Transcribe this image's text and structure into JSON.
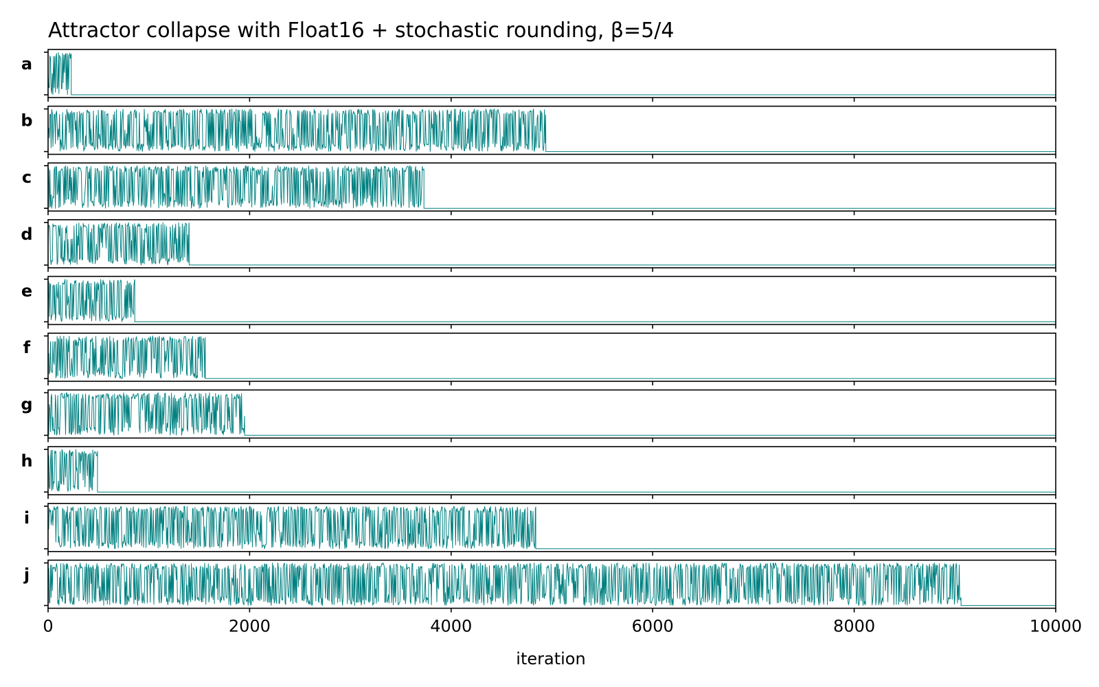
{
  "chart_data": {
    "type": "line",
    "title": "Attractor collapse with Float16 + stochastic rounding, β=5/4",
    "xlabel": "iteration",
    "xlim": [
      0,
      10000
    ],
    "xticks": [
      0,
      2000,
      4000,
      6000,
      8000,
      10000
    ],
    "xtick_labels": [
      "0",
      "2000",
      "4000",
      "6000",
      "8000",
      "10000"
    ],
    "line_color": "#008080",
    "grid": false,
    "legend": "none",
    "panel_y_range": [
      0,
      1
    ],
    "panels": [
      {
        "label": "a",
        "collapse_iteration": 230
      },
      {
        "label": "b",
        "collapse_iteration": 4940
      },
      {
        "label": "c",
        "collapse_iteration": 3730
      },
      {
        "label": "d",
        "collapse_iteration": 1400
      },
      {
        "label": "e",
        "collapse_iteration": 860
      },
      {
        "label": "f",
        "collapse_iteration": 1560
      },
      {
        "label": "g",
        "collapse_iteration": 1950
      },
      {
        "label": "h",
        "collapse_iteration": 490
      },
      {
        "label": "i",
        "collapse_iteration": 4840
      },
      {
        "label": "j",
        "collapse_iteration": 9060
      }
    ]
  }
}
